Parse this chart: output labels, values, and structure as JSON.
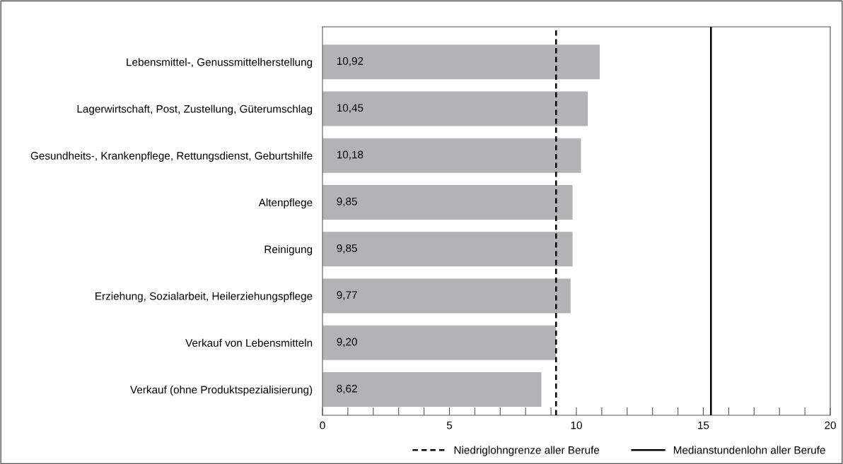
{
  "chart_data": {
    "type": "bar",
    "orientation": "horizontal",
    "categories": [
      "Lebensmittel-, Genussmittelherstellung",
      "Lagerwirtschaft, Post, Zustellung, Güterumschlag",
      "Gesundheits-, Krankenpflege, Rettungsdienst, Geburtshilfe",
      "Altenpflege",
      "Reinigung",
      "Erziehung, Sozialarbeit, Heilerziehungspflege",
      "Verkauf von Lebensmitteln",
      "Verkauf (ohne Produktspezialisierung)"
    ],
    "values": [
      10.92,
      10.45,
      10.18,
      9.85,
      9.85,
      9.77,
      9.2,
      8.62
    ],
    "value_labels": [
      "10,92",
      "10,45",
      "10,18",
      "9,85",
      "9,85",
      "9,77",
      "9,20",
      "8,62"
    ],
    "color": "#b2b3b5",
    "xlim": [
      0,
      20
    ],
    "xticks": [
      0,
      {
        "value": 1,
        "label": null
      },
      {
        "value": 2,
        "label": null
      },
      {
        "value": 3,
        "label": null
      },
      {
        "value": 4,
        "label": null
      },
      5,
      {
        "value": 6,
        "label": null
      },
      {
        "value": 7,
        "label": null
      },
      {
        "value": 8,
        "label": null
      },
      {
        "value": 9,
        "label": null
      },
      10,
      {
        "value": 11,
        "label": null
      },
      {
        "value": 12,
        "label": null
      },
      {
        "value": 13,
        "label": null
      },
      {
        "value": 14,
        "label": null
      },
      15,
      {
        "value": 16,
        "label": null
      },
      {
        "value": 17,
        "label": null
      },
      {
        "value": 18,
        "label": null
      },
      {
        "value": 19,
        "label": null
      },
      20
    ],
    "ref_lines": [
      {
        "axis": "x",
        "value": 9.2,
        "label": "Niedriglohngrenze aller Berufe",
        "color": "#000000",
        "line_style": "dashed"
      },
      {
        "axis": "x",
        "value": 15.3,
        "label": "Medianstundenlohn aller Berufe",
        "color": "#000000",
        "line_style": "solid"
      }
    ],
    "grid": false,
    "legend": "bottom right"
  }
}
